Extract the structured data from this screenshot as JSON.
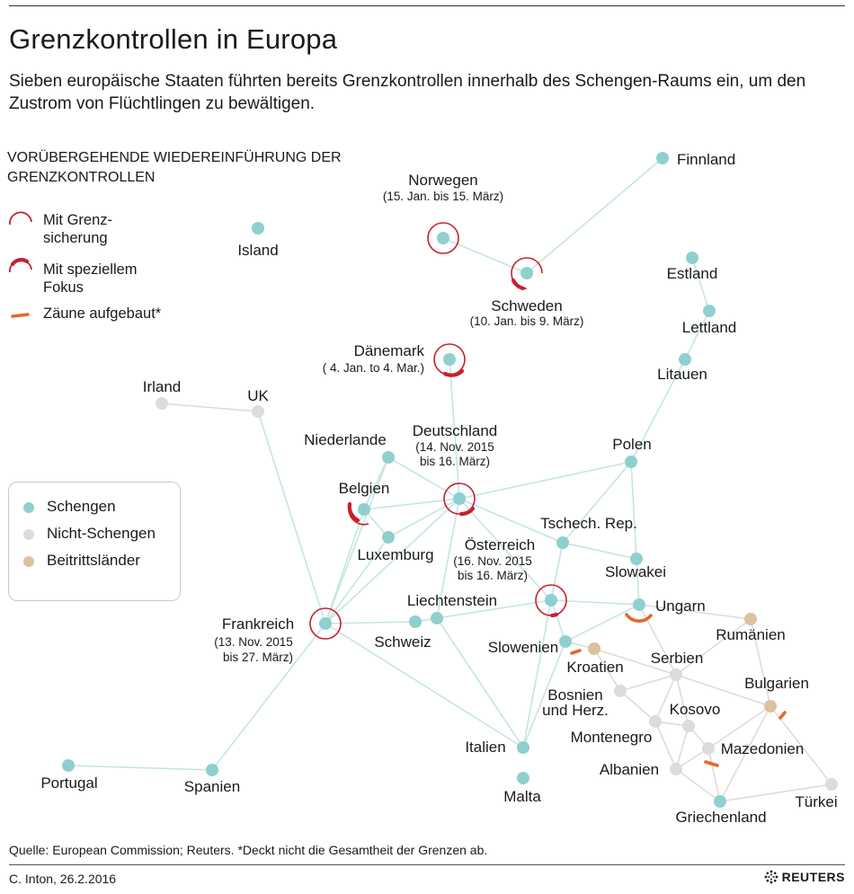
{
  "title": "Grenzkontrollen in Europa",
  "subtitle": "Sieben europäische Staaten führten bereits Grenzkontrollen innerhalb des Schengen-Raums ein, um den Zustrom von Flüchtlingen zu bewältigen.",
  "legend": {
    "heading": "Vorübergehende Wiedereinführung der Grenzkontrollen",
    "items": [
      {
        "label_line1": "Mit Grenz-",
        "label_line2": "sicherung"
      },
      {
        "label_line1": "Mit speziellem",
        "label_line2": "Fokus"
      },
      {
        "label_line1": "Zäune aufgebaut*",
        "label_line2": ""
      }
    ]
  },
  "status_legend": [
    {
      "label": "Schengen",
      "color": "#8fd0cf"
    },
    {
      "label": "Nicht-Schengen",
      "color": "#dcdcdc"
    },
    {
      "label": "Beitrittsländer",
      "color": "#dcc1a0"
    }
  ],
  "colors": {
    "schengen": "#8fd0cf",
    "non_schengen": "#dcdcdc",
    "accession": "#dcc1a0",
    "edge_schengen": "#c4e5e3",
    "edge_other": "#dcdcdc",
    "border_control": "#c8202d",
    "fence": "#e3692a"
  },
  "countries": {
    "finnland": {
      "name": "Finnland"
    },
    "norwegen": {
      "name": "Norwegen",
      "dates": "(15. Jan. bis 15. März)"
    },
    "island": {
      "name": "Island"
    },
    "schweden": {
      "name": "Schweden",
      "dates": "(10. Jan.  bis  9. März)"
    },
    "estland": {
      "name": "Estland"
    },
    "lettland": {
      "name": "Lettland"
    },
    "daenemark": {
      "name": "Dänemark",
      "dates": "( 4. Jan. to 4. Mar.)"
    },
    "litauen": {
      "name": "Litauen"
    },
    "irland": {
      "name": "Irland"
    },
    "uk": {
      "name": "UK"
    },
    "deutschland": {
      "name": "Deutschland",
      "dates1": "(14. Nov.  2015",
      "dates2": "bis 16. März)"
    },
    "niederlande": {
      "name": "Niederlande"
    },
    "polen": {
      "name": "Polen"
    },
    "belgien": {
      "name": "Belgien"
    },
    "luxemburg": {
      "name": "Luxemburg"
    },
    "tschechien": {
      "name": "Tschech. Rep."
    },
    "oesterreich": {
      "name": "Österreich",
      "dates1": "(16. Nov.  2015",
      "dates2": "bis 16. März)"
    },
    "slowakei": {
      "name": "Slowakei"
    },
    "liechtenstein": {
      "name": "Liechtenstein"
    },
    "ungarn": {
      "name": "Ungarn"
    },
    "frankreich": {
      "name": "Frankreich",
      "dates1": "(13. Nov. 2015",
      "dates2": "bis 27. März)"
    },
    "schweiz": {
      "name": "Schweiz"
    },
    "rumaenien": {
      "name": "Rumänien"
    },
    "slowenien": {
      "name": "Slowenien"
    },
    "kroatien": {
      "name": "Kroatien"
    },
    "serbien": {
      "name": "Serbien"
    },
    "bulgarien": {
      "name": "Bulgarien"
    },
    "bosnien": {
      "name1": "Bosnien",
      "name2": "und Herz."
    },
    "kosovo": {
      "name": "Kosovo"
    },
    "montenegro": {
      "name": "Montenegro"
    },
    "mazedonien": {
      "name": "Mazedonien"
    },
    "albanien": {
      "name": "Albanien"
    },
    "italien": {
      "name": "Italien"
    },
    "portugal": {
      "name": "Portugal"
    },
    "spanien": {
      "name": "Spanien"
    },
    "malta": {
      "name": "Malta"
    },
    "griechenland": {
      "name": "Griechenland"
    },
    "tuerkei": {
      "name": "Türkei"
    }
  },
  "footer": {
    "source": "Quelle: European Commission; Reuters.  *Deckt nicht die Gesamtheit der Grenzen ab.",
    "credit": "C. Inton, 26.2.2016",
    "brand": "REUTERS"
  }
}
